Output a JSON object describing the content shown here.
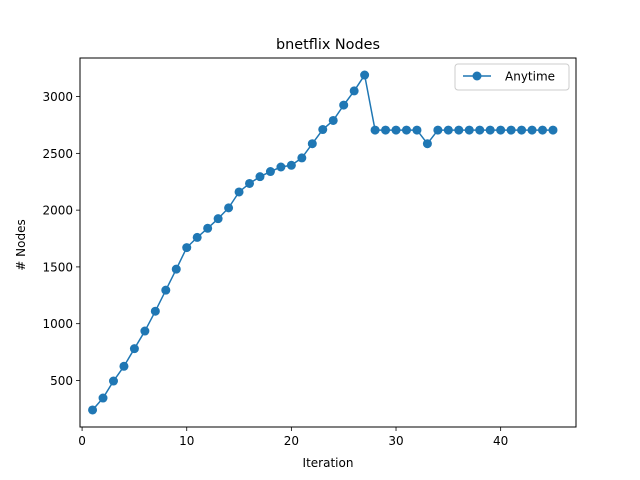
{
  "chart_data": {
    "type": "line",
    "title": "bnetflix Nodes",
    "xlabel": "Iteration",
    "ylabel": "# Nodes",
    "xlim": [
      -0.2,
      47.2
    ],
    "ylim": [
      90,
      3340
    ],
    "xticks": [
      0,
      10,
      20,
      30,
      40
    ],
    "yticks": [
      500,
      1000,
      1500,
      2000,
      2500,
      3000
    ],
    "grid": false,
    "legend_position": "top-right",
    "series": [
      {
        "name": "Anytime",
        "color": "#1f77b4",
        "marker": "circle",
        "x": [
          1,
          2,
          3,
          4,
          5,
          6,
          7,
          8,
          9,
          10,
          11,
          12,
          13,
          14,
          15,
          16,
          17,
          18,
          19,
          20,
          21,
          22,
          23,
          24,
          25,
          26,
          27,
          28,
          29,
          30,
          31,
          32,
          33,
          34,
          35,
          36,
          37,
          38,
          39,
          40,
          41,
          42,
          43,
          44,
          45
        ],
        "y": [
          240,
          345,
          495,
          625,
          780,
          935,
          1110,
          1295,
          1480,
          1670,
          1760,
          1840,
          1925,
          2020,
          2160,
          2235,
          2295,
          2340,
          2380,
          2395,
          2460,
          2585,
          2710,
          2790,
          2925,
          3050,
          3190,
          2705,
          2705,
          2705,
          2705,
          2705,
          2585,
          2705,
          2705,
          2705,
          2705,
          2705,
          2705,
          2705,
          2705,
          2705,
          2705,
          2705,
          2705
        ]
      }
    ]
  }
}
